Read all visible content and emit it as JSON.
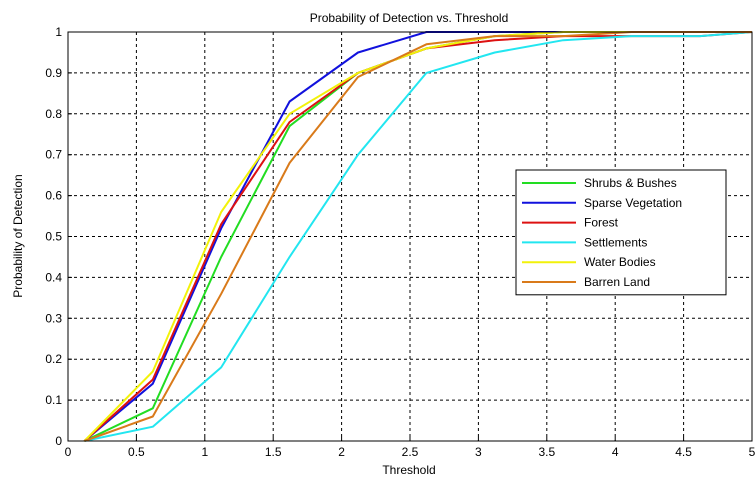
{
  "chart_data": {
    "type": "line",
    "title": "Probability of Detection vs. Threshold",
    "xlabel": "Threshold",
    "ylabel": "Probability of Detection",
    "xlim": [
      0,
      5
    ],
    "ylim": [
      0,
      1
    ],
    "x_ticks": [
      "0",
      "0.5",
      "1",
      "1.5",
      "2",
      "2.5",
      "3",
      "3.5",
      "4",
      "4.5",
      "5"
    ],
    "y_ticks": [
      "0",
      "0.1",
      "0.2",
      "0.3",
      "0.4",
      "0.5",
      "0.6",
      "0.7",
      "0.8",
      "0.9",
      "1"
    ],
    "grid": true,
    "legend_position": "right",
    "series": [
      {
        "name": "Shrubs & Bushes",
        "color": "#22dd22",
        "x": [
          0.12,
          0.62,
          1.12,
          1.62,
          2.12,
          2.62,
          3.12,
          3.62,
          4.12,
          4.62,
          5.0
        ],
        "y": [
          0.0,
          0.08,
          0.45,
          0.77,
          0.9,
          0.96,
          0.99,
          1.0,
          1.0,
          1.0,
          1.0
        ]
      },
      {
        "name": "Sparse Vegetation",
        "color": "#1111dd",
        "x": [
          0.12,
          0.62,
          1.12,
          1.62,
          2.12,
          2.62,
          3.12,
          3.62,
          4.12,
          4.62,
          5.0
        ],
        "y": [
          0.0,
          0.14,
          0.52,
          0.83,
          0.95,
          1.0,
          1.0,
          1.0,
          1.0,
          1.0,
          1.0
        ]
      },
      {
        "name": "Forest",
        "color": "#dd1111",
        "x": [
          0.12,
          0.62,
          1.12,
          1.62,
          2.12,
          2.62,
          3.12,
          3.62,
          4.12,
          4.62,
          5.0
        ],
        "y": [
          0.0,
          0.15,
          0.53,
          0.78,
          0.9,
          0.96,
          0.98,
          0.99,
          0.99,
          0.99,
          1.0
        ]
      },
      {
        "name": "Settlements",
        "color": "#22e6f0",
        "x": [
          0.12,
          0.62,
          1.12,
          1.62,
          2.12,
          2.62,
          3.12,
          3.62,
          4.12,
          4.62,
          5.0
        ],
        "y": [
          0.0,
          0.035,
          0.18,
          0.45,
          0.7,
          0.9,
          0.95,
          0.98,
          0.99,
          0.99,
          1.0
        ]
      },
      {
        "name": "Water Bodies",
        "color": "#f2f20a",
        "x": [
          0.12,
          0.62,
          1.12,
          1.62,
          2.12,
          2.62,
          3.12,
          3.62,
          4.12,
          4.62,
          5.0
        ],
        "y": [
          0.0,
          0.17,
          0.56,
          0.8,
          0.9,
          0.96,
          0.99,
          1.0,
          1.0,
          1.0,
          1.0
        ]
      },
      {
        "name": "Barren Land",
        "color": "#d97a1a",
        "x": [
          0.12,
          0.62,
          1.12,
          1.62,
          2.12,
          2.62,
          3.12,
          3.62,
          4.12,
          4.62,
          5.0
        ],
        "y": [
          0.0,
          0.06,
          0.36,
          0.68,
          0.89,
          0.97,
          0.99,
          0.99,
          1.0,
          1.0,
          1.0
        ]
      }
    ]
  }
}
